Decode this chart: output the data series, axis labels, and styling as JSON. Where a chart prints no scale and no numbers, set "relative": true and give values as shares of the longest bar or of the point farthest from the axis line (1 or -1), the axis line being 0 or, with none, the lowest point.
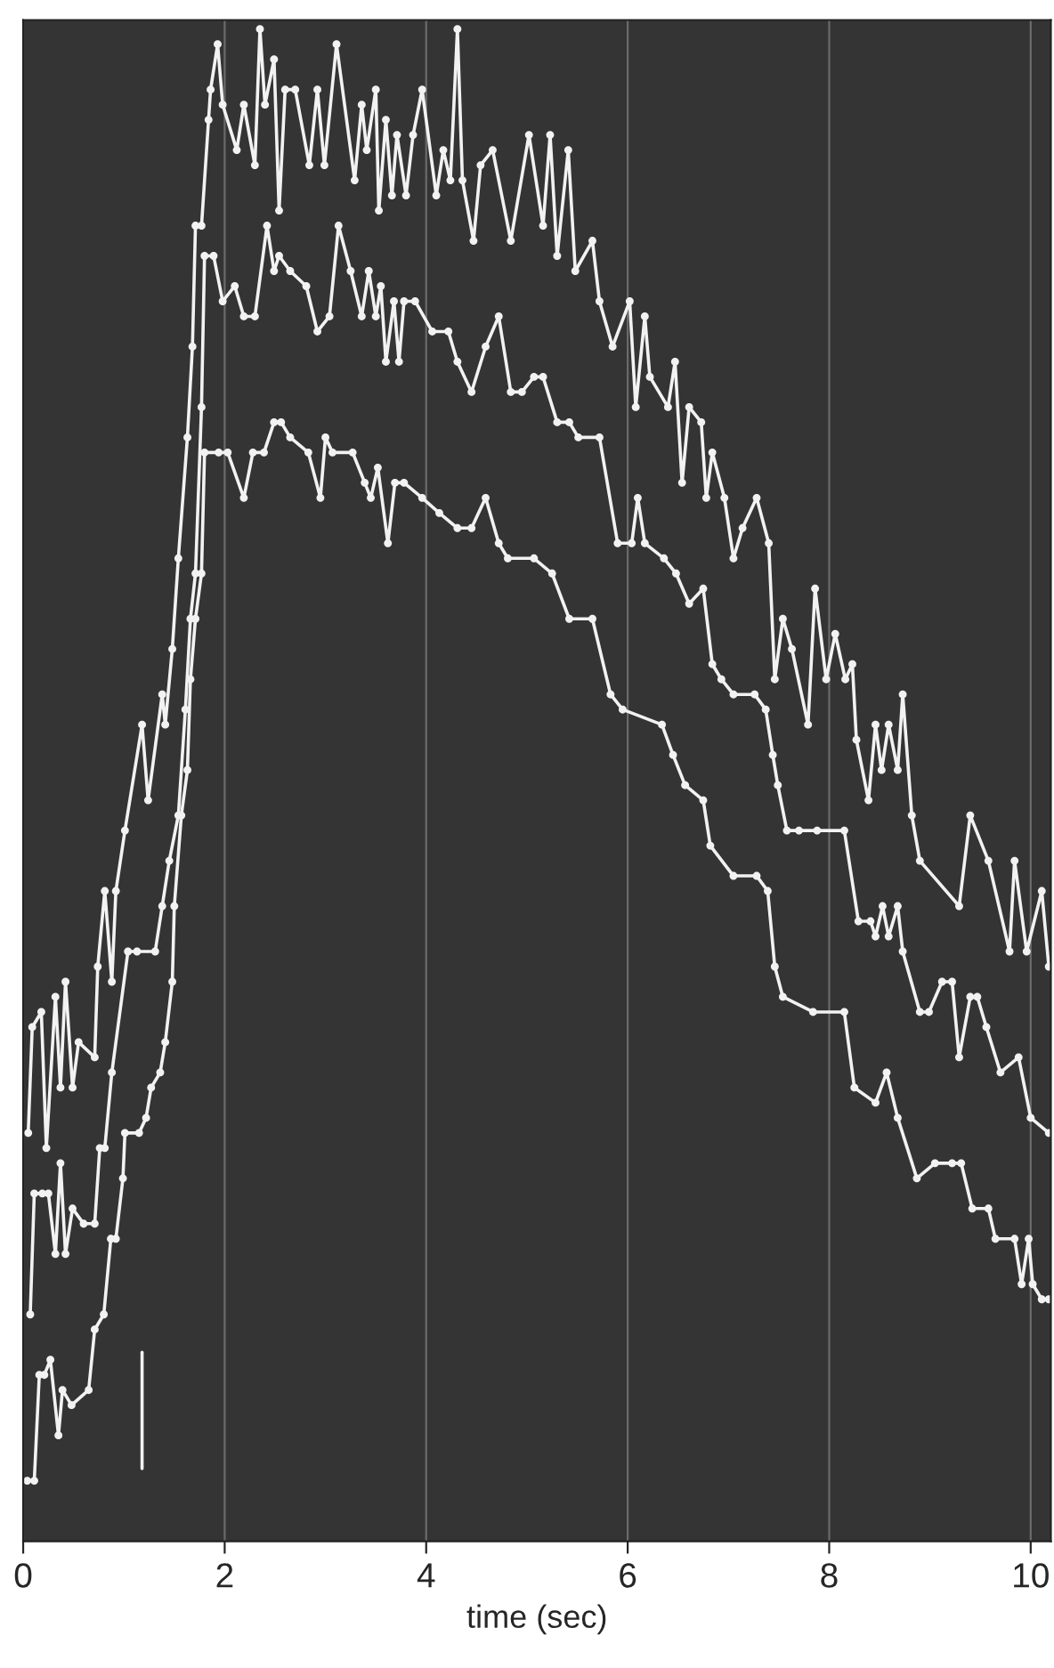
{
  "chart_data": {
    "type": "line",
    "xlabel": "time (sec)",
    "relative": true,
    "xlim": [
      0,
      10.2
    ],
    "xticks": [
      0,
      2,
      4,
      6,
      8,
      10
    ],
    "grid": "x",
    "marker": "circle",
    "line_style": "solid",
    "series": [
      {
        "color": "#f2f2f2",
        "x": [
          0.05,
          0.09,
          0.18,
          0.23,
          0.32,
          0.37,
          0.42,
          0.49,
          0.55,
          0.71,
          0.74,
          0.81,
          0.88,
          0.92,
          1.01,
          1.18,
          1.24,
          1.38,
          1.41,
          1.48,
          1.54,
          1.63,
          1.68,
          1.71,
          1.77,
          1.84,
          1.86,
          1.93,
          1.98,
          2.12,
          2.19,
          2.3,
          2.35,
          2.4,
          2.49,
          2.54,
          2.6,
          2.7,
          2.84,
          2.92,
          2.99,
          3.11,
          3.29,
          3.36,
          3.41,
          3.5,
          3.53,
          3.6,
          3.66,
          3.71,
          3.8,
          3.87,
          3.96,
          4.1,
          4.17,
          4.24,
          4.31,
          4.36,
          4.47,
          4.54,
          4.66,
          4.84,
          5.02,
          5.16,
          5.23,
          5.3,
          5.41,
          5.48,
          5.65,
          5.72,
          5.85,
          6.02,
          6.08,
          6.17,
          6.22,
          6.4,
          6.47,
          6.54,
          6.61,
          6.73,
          6.78,
          6.84,
          6.96,
          7.05,
          7.14,
          7.28,
          7.4,
          7.46,
          7.54,
          7.63,
          7.79,
          7.86,
          7.97,
          8.06,
          8.16,
          8.23,
          8.27,
          8.39,
          8.46,
          8.52,
          8.59,
          8.68,
          8.73,
          8.82,
          8.9,
          9.29,
          9.4,
          9.58,
          9.79,
          9.84,
          9.96,
          10.11,
          10.18
        ],
        "values": [
          0.27,
          0.34,
          0.35,
          0.26,
          0.36,
          0.3,
          0.37,
          0.3,
          0.33,
          0.32,
          0.38,
          0.43,
          0.37,
          0.43,
          0.47,
          0.54,
          0.49,
          0.56,
          0.54,
          0.59,
          0.65,
          0.73,
          0.79,
          0.87,
          0.87,
          0.94,
          0.96,
          0.99,
          0.95,
          0.92,
          0.95,
          0.91,
          1.0,
          0.95,
          0.98,
          0.88,
          0.96,
          0.96,
          0.91,
          0.96,
          0.91,
          0.99,
          0.9,
          0.95,
          0.92,
          0.96,
          0.88,
          0.94,
          0.89,
          0.93,
          0.89,
          0.93,
          0.96,
          0.89,
          0.92,
          0.9,
          1.0,
          0.9,
          0.86,
          0.91,
          0.92,
          0.86,
          0.93,
          0.87,
          0.93,
          0.85,
          0.92,
          0.84,
          0.86,
          0.82,
          0.79,
          0.82,
          0.75,
          0.81,
          0.77,
          0.75,
          0.78,
          0.7,
          0.75,
          0.74,
          0.69,
          0.72,
          0.69,
          0.65,
          0.67,
          0.69,
          0.66,
          0.57,
          0.61,
          0.59,
          0.54,
          0.63,
          0.57,
          0.6,
          0.57,
          0.58,
          0.53,
          0.49,
          0.54,
          0.51,
          0.54,
          0.51,
          0.56,
          0.48,
          0.45,
          0.42,
          0.48,
          0.45,
          0.39,
          0.45,
          0.39,
          0.43,
          0.38
        ]
      },
      {
        "color": "#f2f2f2",
        "x": [
          0.07,
          0.11,
          0.19,
          0.25,
          0.32,
          0.37,
          0.42,
          0.49,
          0.6,
          0.71,
          0.76,
          0.81,
          0.88,
          1.04,
          1.13,
          1.31,
          1.38,
          1.45,
          1.54,
          1.61,
          1.66,
          1.71,
          1.77,
          1.8,
          1.89,
          1.98,
          2.1,
          2.19,
          2.3,
          2.42,
          2.49,
          2.54,
          2.65,
          2.81,
          2.92,
          3.04,
          3.13,
          3.25,
          3.36,
          3.43,
          3.5,
          3.55,
          3.6,
          3.68,
          3.73,
          3.78,
          3.89,
          4.06,
          4.22,
          4.31,
          4.45,
          4.59,
          4.72,
          4.84,
          4.95,
          5.07,
          5.16,
          5.3,
          5.42,
          5.51,
          5.72,
          5.9,
          6.04,
          6.1,
          6.17,
          6.36,
          6.48,
          6.61,
          6.75,
          6.84,
          6.93,
          7.05,
          7.26,
          7.37,
          7.44,
          7.49,
          7.58,
          7.7,
          7.88,
          8.15,
          8.29,
          8.41,
          8.46,
          8.53,
          8.59,
          8.68,
          8.73,
          8.9,
          8.99,
          9.12,
          9.22,
          9.29,
          9.4,
          9.47,
          9.56,
          9.7,
          9.88,
          10.0,
          10.18
        ],
        "values": [
          0.15,
          0.23,
          0.23,
          0.23,
          0.19,
          0.25,
          0.19,
          0.22,
          0.21,
          0.21,
          0.26,
          0.26,
          0.31,
          0.39,
          0.39,
          0.39,
          0.42,
          0.45,
          0.48,
          0.55,
          0.61,
          0.64,
          0.75,
          0.85,
          0.85,
          0.82,
          0.83,
          0.81,
          0.81,
          0.87,
          0.84,
          0.85,
          0.84,
          0.83,
          0.8,
          0.81,
          0.87,
          0.84,
          0.81,
          0.84,
          0.81,
          0.83,
          0.78,
          0.82,
          0.78,
          0.82,
          0.82,
          0.8,
          0.8,
          0.78,
          0.76,
          0.79,
          0.81,
          0.76,
          0.76,
          0.77,
          0.77,
          0.74,
          0.74,
          0.73,
          0.73,
          0.66,
          0.66,
          0.69,
          0.66,
          0.65,
          0.64,
          0.62,
          0.63,
          0.58,
          0.57,
          0.56,
          0.56,
          0.55,
          0.52,
          0.5,
          0.47,
          0.47,
          0.47,
          0.47,
          0.41,
          0.41,
          0.4,
          0.42,
          0.4,
          0.42,
          0.39,
          0.35,
          0.35,
          0.37,
          0.37,
          0.32,
          0.36,
          0.36,
          0.34,
          0.31,
          0.32,
          0.28,
          0.27
        ]
      },
      {
        "color": "#f2f2f2",
        "x": [
          0.04,
          0.11,
          0.16,
          0.21,
          0.27,
          0.35,
          0.39,
          0.48,
          0.65,
          0.71,
          0.8,
          0.87,
          0.92,
          0.99,
          1.01,
          1.15,
          1.22,
          1.27,
          1.36,
          1.41,
          1.48,
          1.5,
          1.57,
          1.63,
          1.66,
          1.71,
          1.77,
          1.8,
          1.94,
          2.03,
          2.19,
          2.28,
          2.39,
          2.49,
          2.56,
          2.65,
          2.83,
          2.95,
          3.0,
          3.07,
          3.27,
          3.39,
          3.45,
          3.52,
          3.62,
          3.69,
          3.78,
          3.96,
          4.13,
          4.31,
          4.45,
          4.59,
          4.72,
          4.81,
          5.07,
          5.25,
          5.42,
          5.65,
          5.83,
          5.95,
          6.34,
          6.45,
          6.57,
          6.75,
          6.82,
          7.05,
          7.28,
          7.39,
          7.46,
          7.54,
          7.84,
          8.15,
          8.25,
          8.46,
          8.57,
          8.68,
          8.87,
          9.05,
          9.22,
          9.31,
          9.42,
          9.58,
          9.65,
          9.84,
          9.91,
          9.98,
          10.02,
          10.11,
          10.18
        ],
        "values": [
          0.04,
          0.04,
          0.11,
          0.11,
          0.12,
          0.07,
          0.1,
          0.09,
          0.1,
          0.14,
          0.15,
          0.2,
          0.2,
          0.24,
          0.27,
          0.27,
          0.28,
          0.3,
          0.31,
          0.33,
          0.37,
          0.42,
          0.48,
          0.51,
          0.57,
          0.61,
          0.64,
          0.72,
          0.72,
          0.72,
          0.69,
          0.72,
          0.72,
          0.74,
          0.74,
          0.73,
          0.72,
          0.69,
          0.73,
          0.72,
          0.72,
          0.7,
          0.69,
          0.71,
          0.66,
          0.7,
          0.7,
          0.69,
          0.68,
          0.67,
          0.67,
          0.69,
          0.66,
          0.65,
          0.65,
          0.64,
          0.61,
          0.61,
          0.56,
          0.55,
          0.54,
          0.52,
          0.5,
          0.49,
          0.46,
          0.44,
          0.44,
          0.43,
          0.38,
          0.36,
          0.35,
          0.35,
          0.3,
          0.29,
          0.31,
          0.28,
          0.24,
          0.25,
          0.25,
          0.25,
          0.22,
          0.22,
          0.2,
          0.2,
          0.17,
          0.2,
          0.17,
          0.16,
          0.16
        ]
      },
      {
        "color": "#f2f2f2",
        "marker": "none",
        "x": [
          1.18,
          1.18
        ],
        "values": [
          0.048,
          0.125
        ]
      }
    ]
  }
}
